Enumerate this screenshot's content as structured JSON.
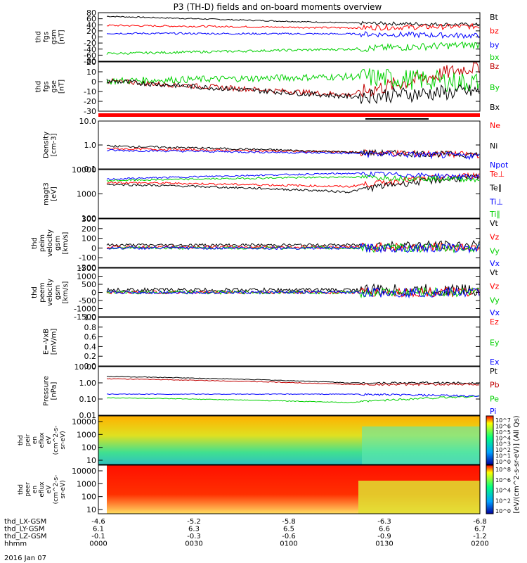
{
  "title": "P3 (TH-D) fields and on-board moments overview",
  "date_label": "2016 Jan 07",
  "chart_data": {
    "type": "line",
    "title": "P3 (TH-D) fields and on-board moments overview",
    "x_axis": {
      "rows": [
        {
          "name": "thd_LX-GSM",
          "values": [
            "-4.6",
            "-5.2",
            "-5.8",
            "-6.3",
            "-6.8"
          ]
        },
        {
          "name": "thd_LY-GSM",
          "values": [
            "6.1",
            "6.3",
            "6.5",
            "6.6",
            "6.7"
          ]
        },
        {
          "name": "thd_LZ-GSM",
          "values": [
            "-0.1",
            "-0.3",
            "-0.6",
            "-0.9",
            "-1.2"
          ]
        },
        {
          "name": "hhmm",
          "values": [
            "0000",
            "0030",
            "0100",
            "0130",
            "0200"
          ]
        }
      ]
    },
    "panels": [
      {
        "id": "fgs_gsm",
        "ylabel": [
          "thd",
          "fgs",
          "gsm",
          "[nT]"
        ],
        "yticks": [
          "80",
          "60",
          "40",
          "20",
          "0",
          "-20",
          "-40",
          "-60",
          "-80"
        ],
        "ylim": [
          -80,
          80
        ],
        "series": [
          {
            "name": "Bt",
            "color": "#000000",
            "start": 68,
            "mid": 46,
            "end": 40,
            "noise": 2
          },
          {
            "name": "bz",
            "color": "#ff0000",
            "start": 38,
            "mid": 30,
            "end": 35,
            "noise": 3
          },
          {
            "name": "by",
            "color": "#0000ff",
            "start": 12,
            "mid": 10,
            "end": 4,
            "noise": 3
          },
          {
            "name": "bx",
            "color": "#00d000",
            "start": -55,
            "mid": -40,
            "end": -25,
            "noise": 4
          }
        ]
      },
      {
        "id": "fgs_gse",
        "ylabel": [
          "thd",
          "fgs",
          "gse",
          "[nT]"
        ],
        "yticks": [
          "20",
          "10",
          "0",
          "-10",
          "-20",
          "-30"
        ],
        "ylim": [
          -35,
          22
        ],
        "series": [
          {
            "name": "Bz",
            "color": "#c00000",
            "start": 0,
            "mid": -16,
            "end": 18,
            "noise": 3
          },
          {
            "name": "By",
            "color": "#00d000",
            "start": 0,
            "mid": 5,
            "end": -2,
            "noise": 4
          },
          {
            "name": "Bx",
            "color": "#000000",
            "start": 0,
            "mid": -18,
            "end": -12,
            "noise": 3
          }
        ]
      },
      {
        "id": "density",
        "ylabel": [
          "Density",
          "[cm-3]"
        ],
        "log": true,
        "yticks": [
          "10.0",
          "1.0",
          "0.1"
        ],
        "ylim": [
          0.1,
          10
        ],
        "series": [
          {
            "name": "Ne",
            "color": "#ff0000",
            "start": 0.7,
            "mid": 0.5,
            "end": 0.4,
            "noise": 0.1
          },
          {
            "name": "Ni",
            "color": "#000000",
            "start": 0.9,
            "mid": 0.5,
            "end": 0.4,
            "noise": 0.1
          },
          {
            "name": "Npot",
            "color": "#0000ff",
            "start": 0.6,
            "mid": 0.45,
            "end": 0.35,
            "noise": 0.1
          }
        ]
      },
      {
        "id": "temperature",
        "ylabel": [
          "magt3",
          "[eV]"
        ],
        "log": true,
        "yticks": [
          "10000",
          "1000",
          "100"
        ],
        "ylim": [
          100,
          10000
        ],
        "series": [
          {
            "name": "Te⊥",
            "color": "#ff0000",
            "start": 3000,
            "mid": 2000,
            "end": 6000,
            "noise": 0.1
          },
          {
            "name": "Te∥",
            "color": "#000000",
            "start": 2500,
            "mid": 1200,
            "end": 5000,
            "noise": 0.1
          },
          {
            "name": "Ti⊥",
            "color": "#0000ff",
            "start": 4000,
            "mid": 7000,
            "end": 5000,
            "noise": 0.08
          },
          {
            "name": "Ti∥",
            "color": "#00d000",
            "start": 3500,
            "mid": 5000,
            "end": 4000,
            "noise": 0.08
          }
        ]
      },
      {
        "id": "peim_velocity",
        "ylabel": [
          "thd",
          "peim",
          "velocity",
          "gsm",
          "[km/s]"
        ],
        "yticks": [
          "300",
          "200",
          "100",
          "0",
          "-100",
          "-200"
        ],
        "ylim": [
          -200,
          300
        ],
        "series": [
          {
            "name": "Vt",
            "color": "#000000",
            "start": 30,
            "mid": 30,
            "end": 30,
            "noise": 15
          },
          {
            "name": "Vz",
            "color": "#ff0000",
            "start": 10,
            "mid": 10,
            "end": 10,
            "noise": 15
          },
          {
            "name": "Vy",
            "color": "#00d000",
            "start": 0,
            "mid": 0,
            "end": 0,
            "noise": 15
          },
          {
            "name": "Vx",
            "color": "#0000ff",
            "start": 0,
            "mid": 0,
            "end": 0,
            "noise": 15
          }
        ]
      },
      {
        "id": "peem_velocity",
        "ylabel": [
          "thd",
          "peem",
          "velocity",
          "gsm",
          "[km/s]"
        ],
        "yticks": [
          "1500",
          "1000",
          "500",
          "0",
          "-500",
          "-1000",
          "-1500"
        ],
        "ylim": [
          -1500,
          1500
        ],
        "series": [
          {
            "name": "Vt",
            "color": "#000000",
            "start": 150,
            "mid": 150,
            "end": 150,
            "noise": 120
          },
          {
            "name": "Vz",
            "color": "#ff0000",
            "start": 0,
            "mid": 0,
            "end": 0,
            "noise": 100
          },
          {
            "name": "Vy",
            "color": "#00d000",
            "start": 0,
            "mid": 0,
            "end": 0,
            "noise": 100
          },
          {
            "name": "Vx",
            "color": "#0000ff",
            "start": 0,
            "mid": 0,
            "end": 0,
            "noise": 100
          }
        ]
      },
      {
        "id": "efield",
        "ylabel": [
          "E=-VxB",
          "[mV/m]"
        ],
        "yticks": [
          "1.0",
          "0.8",
          "0.6",
          "0.4",
          "0.2",
          "0.0"
        ],
        "ylim": [
          0,
          1
        ],
        "series": [
          {
            "name": "Ez",
            "color": "#ff0000"
          },
          {
            "name": "Ey",
            "color": "#00d000"
          },
          {
            "name": "Ex",
            "color": "#0000ff"
          }
        ]
      },
      {
        "id": "pressure",
        "ylabel": [
          "Pressure",
          "[nPa]"
        ],
        "log": true,
        "yticks": [
          "10.00",
          "1.00",
          "0.10",
          "0.01"
        ],
        "ylim": [
          0.01,
          10
        ],
        "series": [
          {
            "name": "Pt",
            "color": "#000000",
            "start": 2.5,
            "mid": 1.0,
            "end": 1.0,
            "noise": 0.05
          },
          {
            "name": "Pb",
            "color": "#c00000",
            "start": 1.8,
            "mid": 0.8,
            "end": 0.8,
            "noise": 0.05
          },
          {
            "name": "Pe",
            "color": "#00d000",
            "start": 0.12,
            "mid": 0.06,
            "end": 0.15,
            "noise": 0.05
          },
          {
            "name": "Pi",
            "color": "#0000ff",
            "start": 0.2,
            "mid": 0.2,
            "end": 0.15,
            "noise": 0.05
          }
        ]
      }
    ],
    "spectrograms": [
      {
        "id": "peir_eflux",
        "ylabel": [
          "thd",
          "peir",
          "en",
          "eflux",
          "eV",
          "(cm^2-s-",
          "sr-eV)"
        ],
        "yticks": [
          "10000",
          "1000",
          "100",
          "10"
        ],
        "colorbar_ticks": [
          "10^7",
          "10^6",
          "10^5",
          "10^4",
          "10^3",
          "10^2",
          "10^1",
          "10^0"
        ]
      },
      {
        "id": "peer_eflux",
        "ylabel": [
          "thd",
          "peer",
          "en",
          "eflux",
          "eV",
          "(cm^2-s-",
          "sr-eV)"
        ],
        "yticks": [
          "10000",
          "1000",
          "100",
          "10"
        ],
        "colorbar_ticks": [
          "10^8",
          "10^6",
          "10^4",
          "10^2",
          "10^0"
        ]
      }
    ],
    "colorbar_label": "[eV/(cm^2-s-sr-eV)] (All Qs)"
  }
}
